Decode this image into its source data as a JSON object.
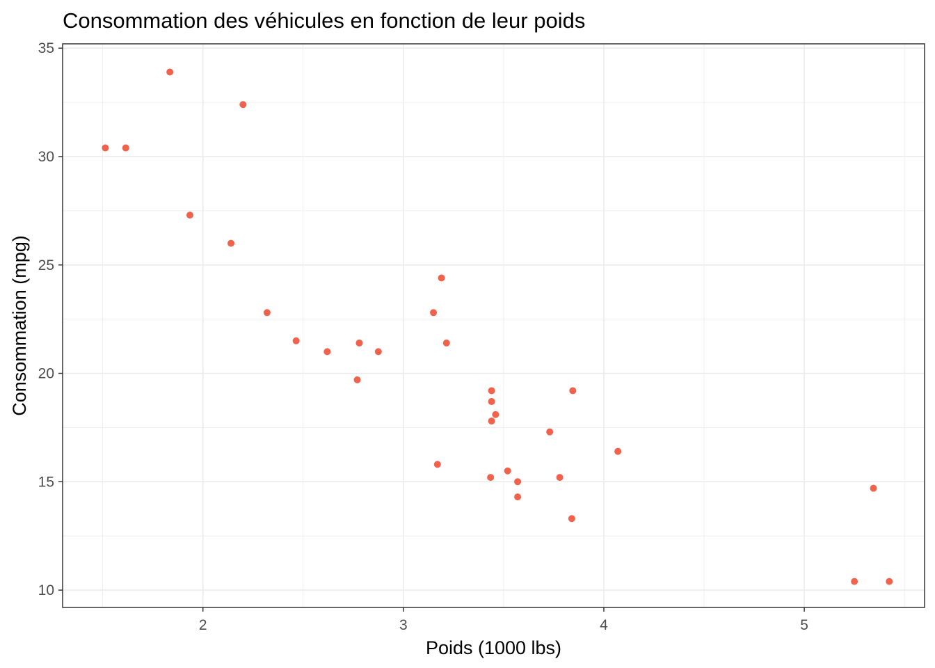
{
  "chart_data": {
    "type": "scatter",
    "title": "Consommation des véhicules en fonction de leur poids",
    "xlabel": "Poids (1000 lbs)",
    "ylabel": "Consommation (mpg)",
    "xlim": [
      1.3,
      5.6
    ],
    "ylim": [
      9.2,
      35.2
    ],
    "x_ticks": [
      2,
      3,
      4,
      5
    ],
    "y_ticks": [
      10,
      15,
      20,
      25,
      30,
      35
    ],
    "x_tick_labels": [
      "2",
      "3",
      "4",
      "5"
    ],
    "y_tick_labels": [
      "10",
      "15",
      "20",
      "25",
      "30",
      "35"
    ],
    "grid": true,
    "legend": "none",
    "colors": {
      "point": "#f0624b",
      "grid": "#ebebeb",
      "border": "#333333"
    },
    "points": [
      {
        "x": 2.62,
        "y": 21.0
      },
      {
        "x": 2.875,
        "y": 21.0
      },
      {
        "x": 2.32,
        "y": 22.8
      },
      {
        "x": 3.215,
        "y": 21.4
      },
      {
        "x": 3.44,
        "y": 18.7
      },
      {
        "x": 3.46,
        "y": 18.1
      },
      {
        "x": 3.57,
        "y": 14.3
      },
      {
        "x": 3.19,
        "y": 24.4
      },
      {
        "x": 3.15,
        "y": 22.8
      },
      {
        "x": 3.44,
        "y": 19.2
      },
      {
        "x": 3.44,
        "y": 17.8
      },
      {
        "x": 4.07,
        "y": 16.4
      },
      {
        "x": 3.73,
        "y": 17.3
      },
      {
        "x": 3.78,
        "y": 15.2
      },
      {
        "x": 5.25,
        "y": 10.4
      },
      {
        "x": 5.424,
        "y": 10.4
      },
      {
        "x": 5.345,
        "y": 14.7
      },
      {
        "x": 2.2,
        "y": 32.4
      },
      {
        "x": 1.615,
        "y": 30.4
      },
      {
        "x": 1.835,
        "y": 33.9
      },
      {
        "x": 2.465,
        "y": 21.5
      },
      {
        "x": 3.52,
        "y": 15.5
      },
      {
        "x": 3.435,
        "y": 15.2
      },
      {
        "x": 3.84,
        "y": 13.3
      },
      {
        "x": 3.845,
        "y": 19.2
      },
      {
        "x": 1.935,
        "y": 27.3
      },
      {
        "x": 2.14,
        "y": 26.0
      },
      {
        "x": 1.513,
        "y": 30.4
      },
      {
        "x": 3.17,
        "y": 15.8
      },
      {
        "x": 2.77,
        "y": 19.7
      },
      {
        "x": 3.57,
        "y": 15.0
      },
      {
        "x": 2.78,
        "y": 21.4
      }
    ]
  }
}
